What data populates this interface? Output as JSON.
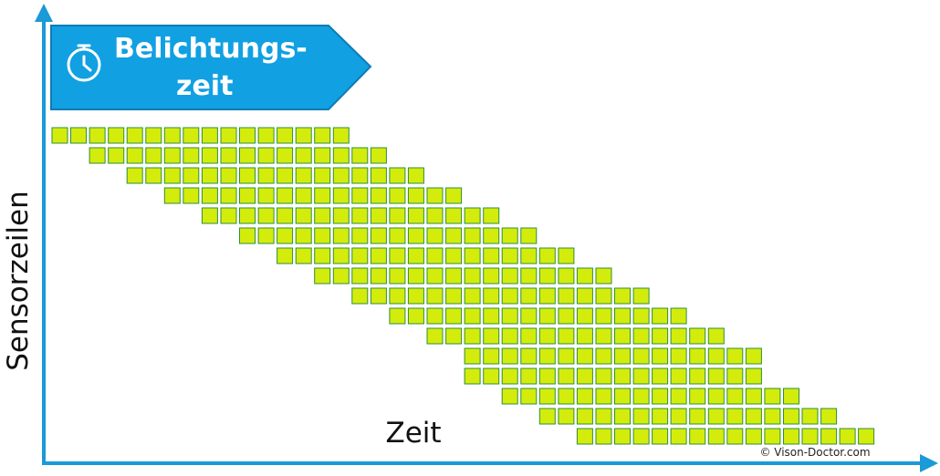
{
  "banner": {
    "line1": "Belichtungs-",
    "line2": "zeit"
  },
  "y_axis_label": "Sensorzeilen",
  "x_axis_label": "Zeit",
  "copyright": "© Vison-Doctor.com"
}
